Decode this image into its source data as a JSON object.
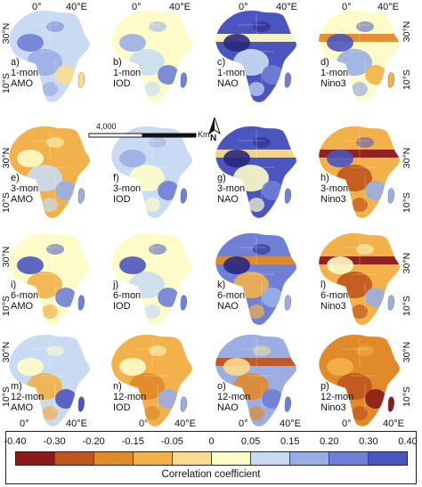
{
  "legend": {
    "title": "Correlation coefficient",
    "ticks": [
      "-0.40",
      "-0.30",
      "-0.20",
      "-0.15",
      "-0.05",
      "0",
      "0.05",
      "0.15",
      "0.20",
      "0.30",
      "0.40"
    ],
    "colors": [
      "#8b1a1a",
      "#c0551d",
      "#e08a2a",
      "#f2b14a",
      "#f8dc8f",
      "#fdfcc8",
      "#c9dbf2",
      "#9aaee4",
      "#6f80d6",
      "#4b55bf",
      "#28287f"
    ]
  },
  "axes": {
    "top_ticks": [
      "0°",
      "40°E"
    ],
    "bottom_ticks": [
      "0°",
      "40°E"
    ],
    "left_ticks": [
      "30°N",
      "10°S"
    ]
  },
  "scale_bar": {
    "value": "4,000",
    "unit": "Km"
  },
  "north_arrow": "N",
  "panels": [
    {
      "id": "a",
      "lines": "a)\n1-mon\nAMO",
      "fill": "#c9dbf2",
      "blobs": [
        "#9aaee4",
        "#f8dc8f",
        "#6f80d6"
      ],
      "band": null
    },
    {
      "id": "b",
      "lines": "b)\n1-mon\nIOD",
      "fill": "#fdfcc8",
      "blobs": [
        "#c9dbf2",
        "#6f80d6",
        "#9aaee4"
      ],
      "band": null
    },
    {
      "id": "c",
      "lines": "c)\n1-mon\nNAO",
      "fill": "#4b55bf",
      "blobs": [
        "#c9dbf2",
        "#6f80d6",
        "#28287f"
      ],
      "band": "#fdfcc8"
    },
    {
      "id": "d",
      "lines": "d)\n1-mon\nNino3",
      "fill": "#fdfcc8",
      "blobs": [
        "#9aaee4",
        "#f2b14a",
        "#4b55bf"
      ],
      "band": "#e08a2a"
    },
    {
      "id": "e",
      "lines": "e)\n3-mon\nAMO",
      "fill": "#f2b14a",
      "blobs": [
        "#c9dbf2",
        "#9aaee4",
        "#fdfcc8"
      ],
      "band": null
    },
    {
      "id": "f",
      "lines": "f)\n3-mon\nIOD",
      "fill": "#c9dbf2",
      "blobs": [
        "#fdfcc8",
        "#6f80d6",
        "#9aaee4"
      ],
      "band": null
    },
    {
      "id": "g",
      "lines": "g)\n3-mon\nNAO",
      "fill": "#4b55bf",
      "blobs": [
        "#fdfcc8",
        "#6f80d6",
        "#28287f"
      ],
      "band": "#f8dc8f"
    },
    {
      "id": "h",
      "lines": "h)\n3-mon\nNino3",
      "fill": "#f2b14a",
      "blobs": [
        "#c0551d",
        "#9aaee4",
        "#4b55bf"
      ],
      "band": "#8b1a1a"
    },
    {
      "id": "i",
      "lines": "i)\n6-mon\nAMO",
      "fill": "#fdfcc8",
      "blobs": [
        "#f2b14a",
        "#6f80d6",
        "#4b55bf"
      ],
      "band": null
    },
    {
      "id": "j",
      "lines": "j)\n6-mon\nIOD",
      "fill": "#fdfcc8",
      "blobs": [
        "#c9dbf2",
        "#6f80d6",
        "#4b55bf"
      ],
      "band": null
    },
    {
      "id": "k",
      "lines": "k)\n6-mon\nNAO",
      "fill": "#6f80d6",
      "blobs": [
        "#f2b14a",
        "#9aaee4",
        "#28287f"
      ],
      "band": "#e08a2a"
    },
    {
      "id": "l",
      "lines": "l)\n6-mon\nNino3",
      "fill": "#f2b14a",
      "blobs": [
        "#c0551d",
        "#9aaee4",
        "#fdfcc8"
      ],
      "band": "#8b1a1a"
    },
    {
      "id": "m",
      "lines": "m)\n12-mon\nAMO",
      "fill": "#c9dbf2",
      "blobs": [
        "#f2b14a",
        "#4b55bf",
        "#fdfcc8"
      ],
      "band": null
    },
    {
      "id": "n",
      "lines": "n)\n12-mon\nIOD",
      "fill": "#f2b14a",
      "blobs": [
        "#e08a2a",
        "#9aaee4",
        "#fdfcc8"
      ],
      "band": null
    },
    {
      "id": "o",
      "lines": "o)\n12-mon\nNAO",
      "fill": "#9aaee4",
      "blobs": [
        "#e08a2a",
        "#6f80d6",
        "#f8dc8f"
      ],
      "band": "#c0551d"
    },
    {
      "id": "p",
      "lines": "p)\n12-mon\nNino3",
      "fill": "#e08a2a",
      "blobs": [
        "#c0551d",
        "#8b1a1a",
        "#f2b14a"
      ],
      "band": null
    }
  ]
}
